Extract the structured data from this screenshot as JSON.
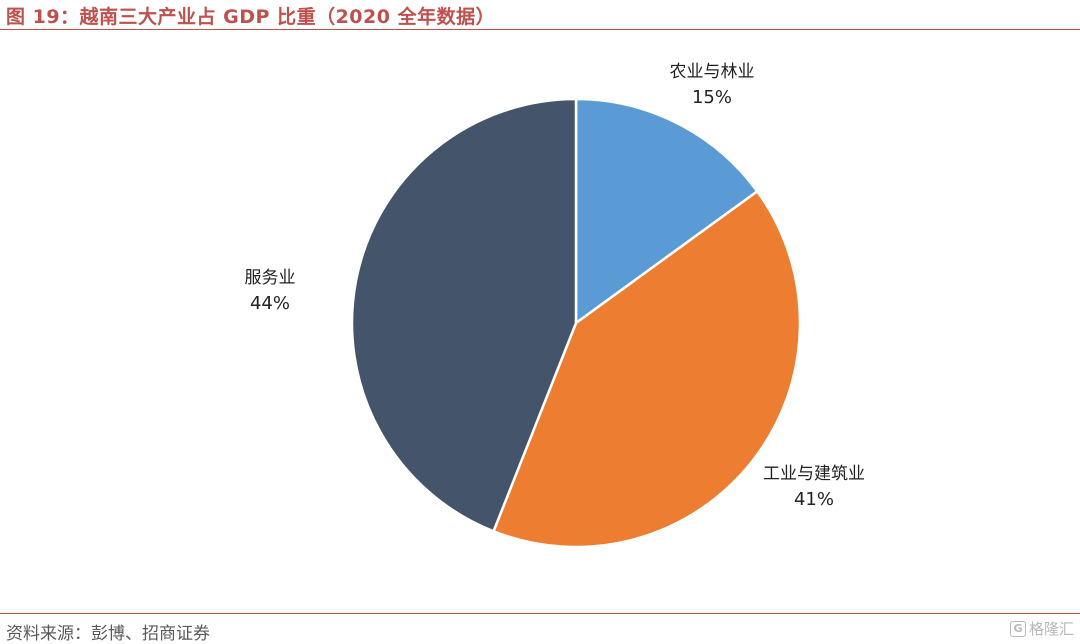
{
  "header": {
    "title": "图 19：越南三大产业占 GDP 比重（2020 全年数据）"
  },
  "footer": {
    "source": "资料来源：彭博、招商证券",
    "watermark_logo": "G",
    "watermark_text": "格隆汇"
  },
  "colors": {
    "accent": "#c0504d",
    "agriculture": "#5b9bd5",
    "industry": "#ed7d31",
    "services": "#44546a"
  },
  "chart_data": {
    "type": "pie",
    "title": "",
    "start_angle_deg": 0,
    "direction": "clockwise",
    "slices": [
      {
        "key": "agriculture",
        "label": "农业与林业",
        "value": 15,
        "display": "15%",
        "color": "#5b9bd5"
      },
      {
        "key": "industry",
        "label": "工业与建筑业",
        "value": 41,
        "display": "41%",
        "color": "#ed7d31"
      },
      {
        "key": "services",
        "label": "服务业",
        "value": 44,
        "display": "44%",
        "color": "#44546a"
      }
    ]
  }
}
